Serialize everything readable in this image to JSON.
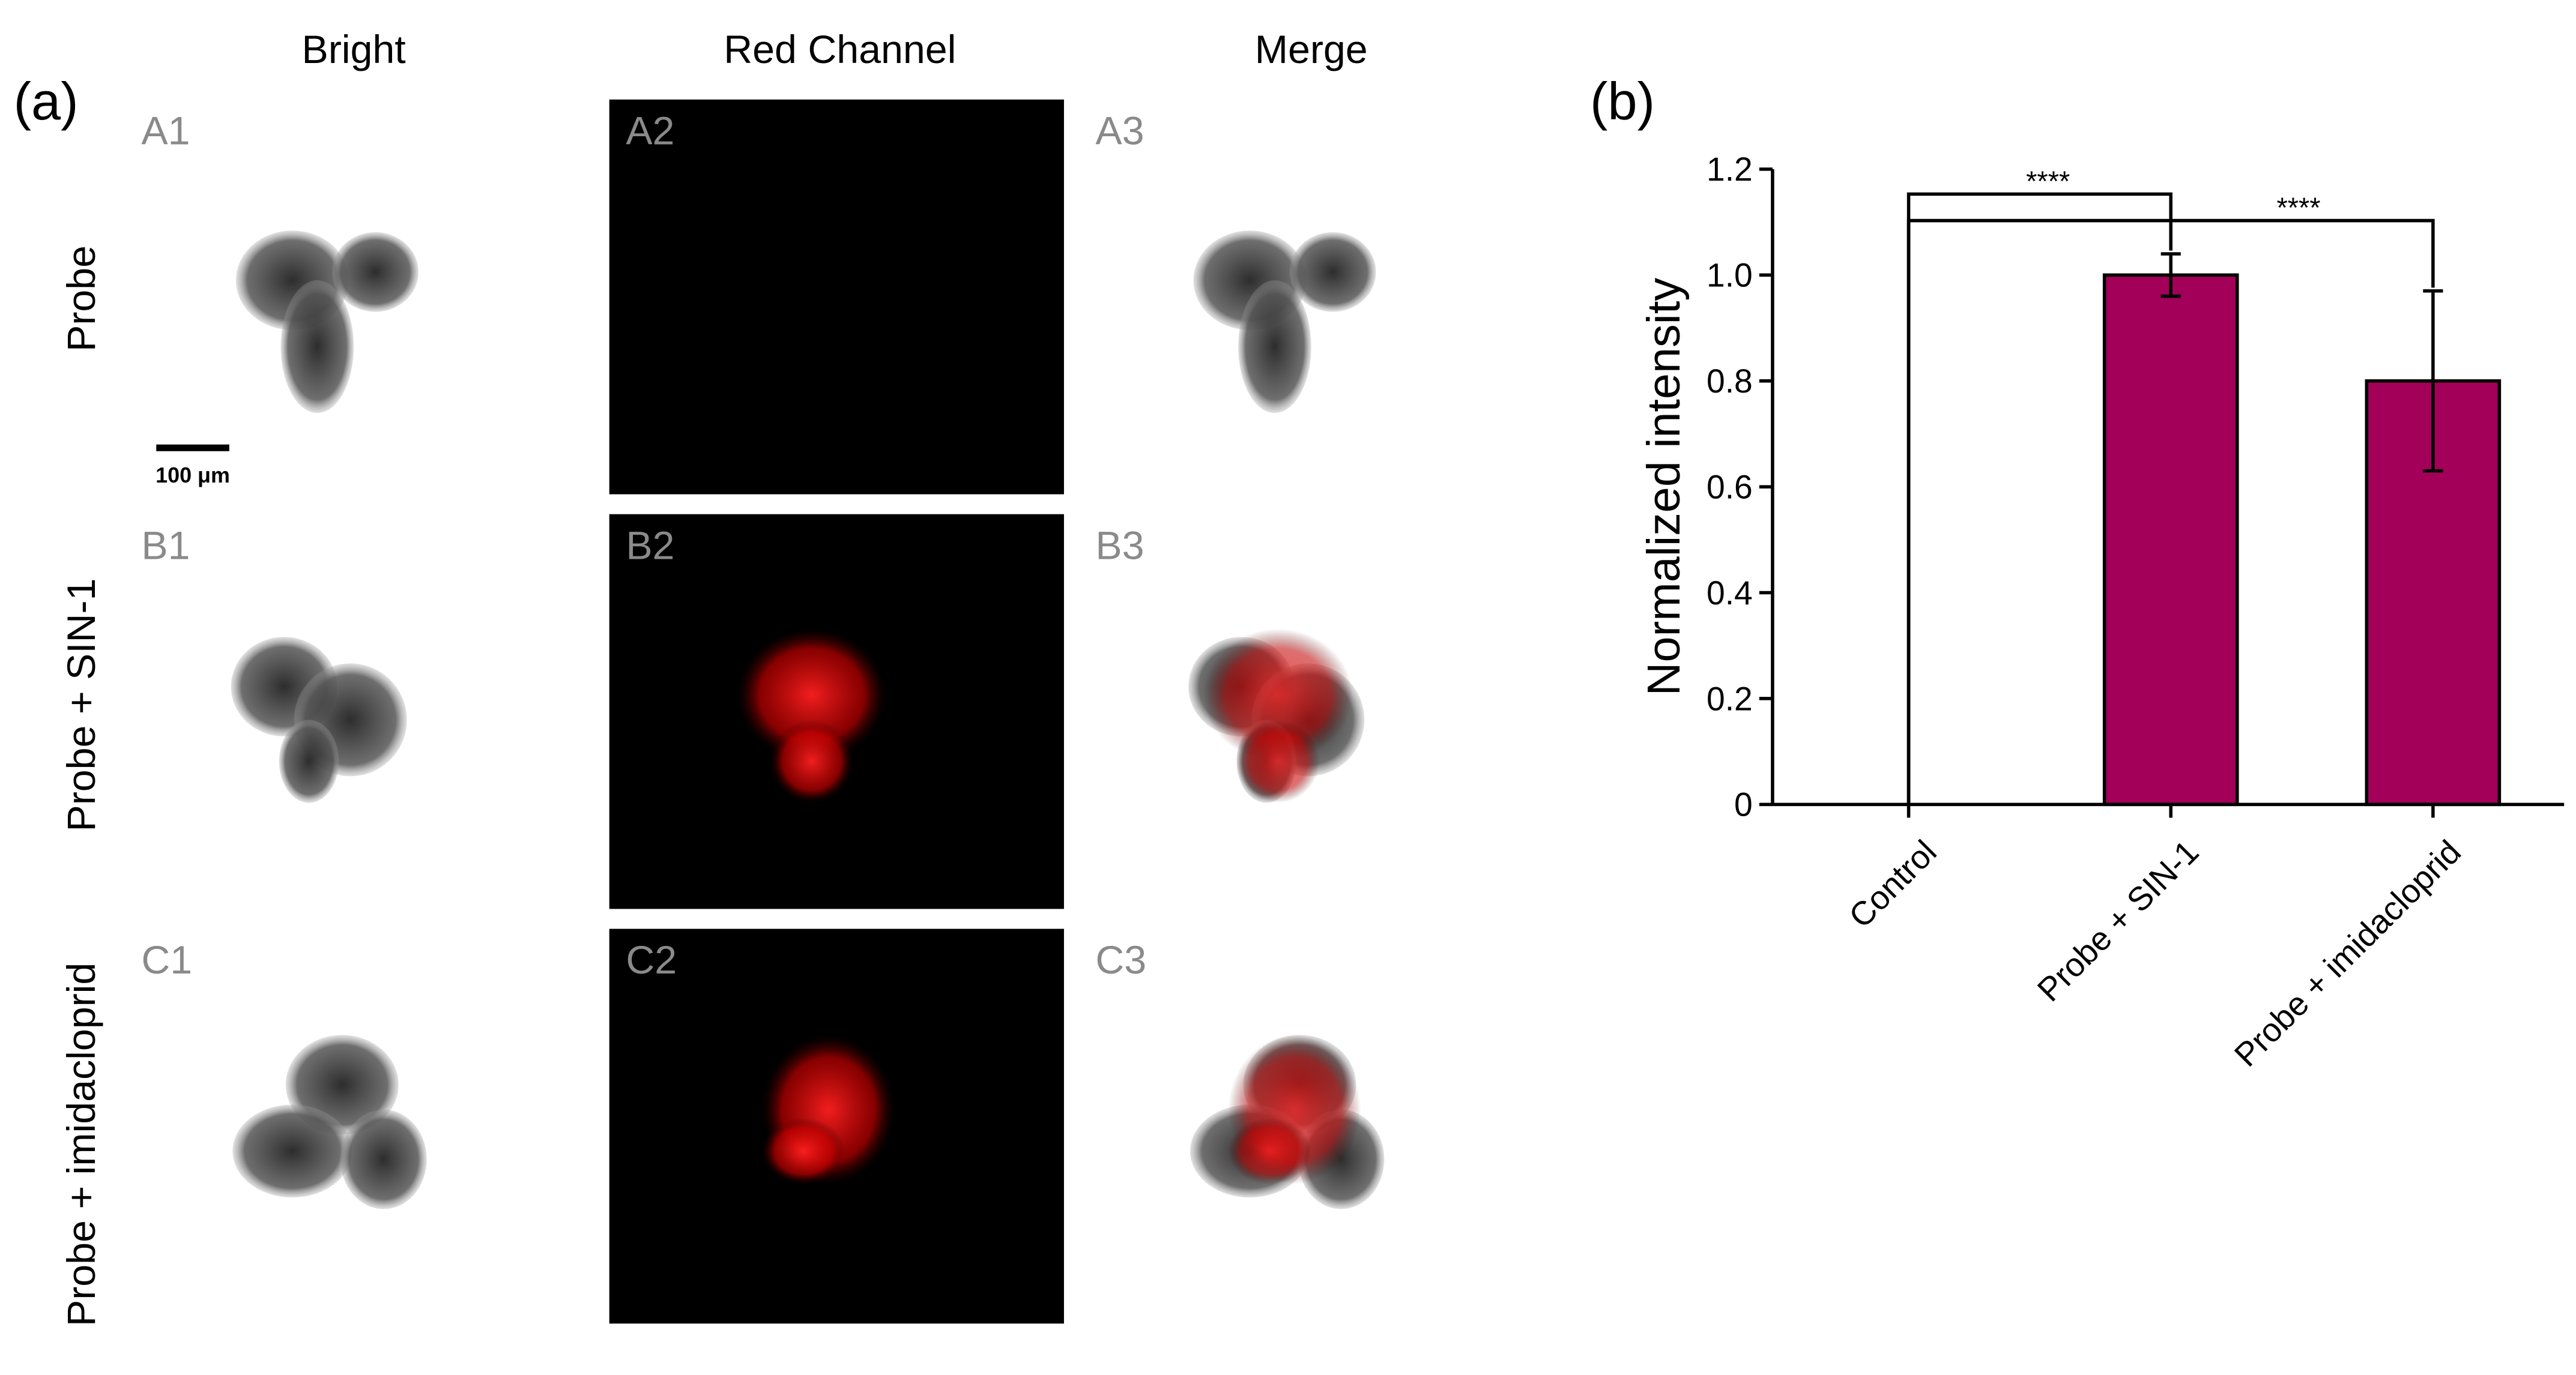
{
  "figure": {
    "panel_label": "(a)",
    "columns": [
      "Bright",
      "Red Channel",
      "Merge"
    ],
    "rows": [
      "Probe",
      "Probe + SIN-1",
      "Probe + imidacloprid"
    ],
    "tiles": [
      [
        "A1",
        "A2",
        "A3"
      ],
      [
        "B1",
        "B2",
        "B3"
      ],
      [
        "C1",
        "C2",
        "C3"
      ]
    ],
    "scale_bar": "100 μm"
  },
  "chart_data": {
    "type": "bar",
    "panel_label": "(b)",
    "y_label": "Normalized intensity",
    "categories": [
      "Control",
      "Probe + SIN-1",
      "Probe + imidacloprid"
    ],
    "values": [
      0,
      1.0,
      0.8
    ],
    "errors": [
      null,
      0.04,
      0.17
    ],
    "color": "#a3005a",
    "annotations": [
      "****",
      "****"
    ],
    "ylim": [
      0,
      1.2
    ],
    "yticks": [
      0,
      0.2,
      0.4,
      0.6,
      0.8,
      {
        "value": 1,
        "label": "1.0"
      },
      1.2
    ]
  }
}
